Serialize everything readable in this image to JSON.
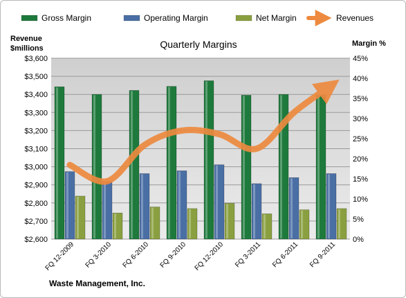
{
  "chart_data": {
    "type": "bar",
    "title": "Quarterly Margins",
    "ylabel_left": [
      "Revenue",
      "$millions"
    ],
    "ylabel_right": "Margin %",
    "footer": "Waste Management, Inc.",
    "categories": [
      "FQ 12-2009",
      "FQ 3-2010",
      "FQ 6-2010",
      "FQ 9-2010",
      "FQ 12-2010",
      "FQ 3-2011",
      "FQ 6-2011",
      "FQ 9-2011"
    ],
    "left_axis": {
      "min": 2600,
      "max": 3600,
      "step": 100,
      "tick_labels": [
        "$2,600",
        "$2,700",
        "$2,800",
        "$2,900",
        "$3,000",
        "$3,100",
        "$3,200",
        "$3,300",
        "$3,400",
        "$3,500",
        "$3,600"
      ]
    },
    "right_axis": {
      "min": 0,
      "max": 45,
      "step": 5,
      "tick_labels": [
        "0%",
        "5%",
        "10%",
        "15%",
        "20%",
        "25%",
        "30%",
        "35%",
        "40%",
        "45%"
      ]
    },
    "series": [
      {
        "name": "Gross Margin",
        "axis": "right",
        "kind": "bar",
        "color": "#1e7a3c",
        "values": [
          37.9,
          36.0,
          37.0,
          38.0,
          39.4,
          35.8,
          36.0,
          35.8
        ]
      },
      {
        "name": "Operating Margin",
        "axis": "right",
        "kind": "bar",
        "color": "#4a6fa5",
        "values": [
          16.8,
          14.3,
          16.3,
          17.0,
          18.5,
          13.8,
          15.3,
          16.3
        ]
      },
      {
        "name": "Net Margin",
        "axis": "right",
        "kind": "bar",
        "color": "#8aa040",
        "values": [
          10.7,
          6.5,
          8.0,
          7.6,
          8.9,
          6.3,
          7.3,
          7.6
        ]
      },
      {
        "name": "Revenues",
        "axis": "left",
        "kind": "line",
        "color": "#ed8a3f",
        "values": [
          3010,
          2920,
          3120,
          3200,
          3180,
          3100,
          3300,
          3450
        ]
      }
    ],
    "grid": true,
    "legend_position": "top"
  }
}
